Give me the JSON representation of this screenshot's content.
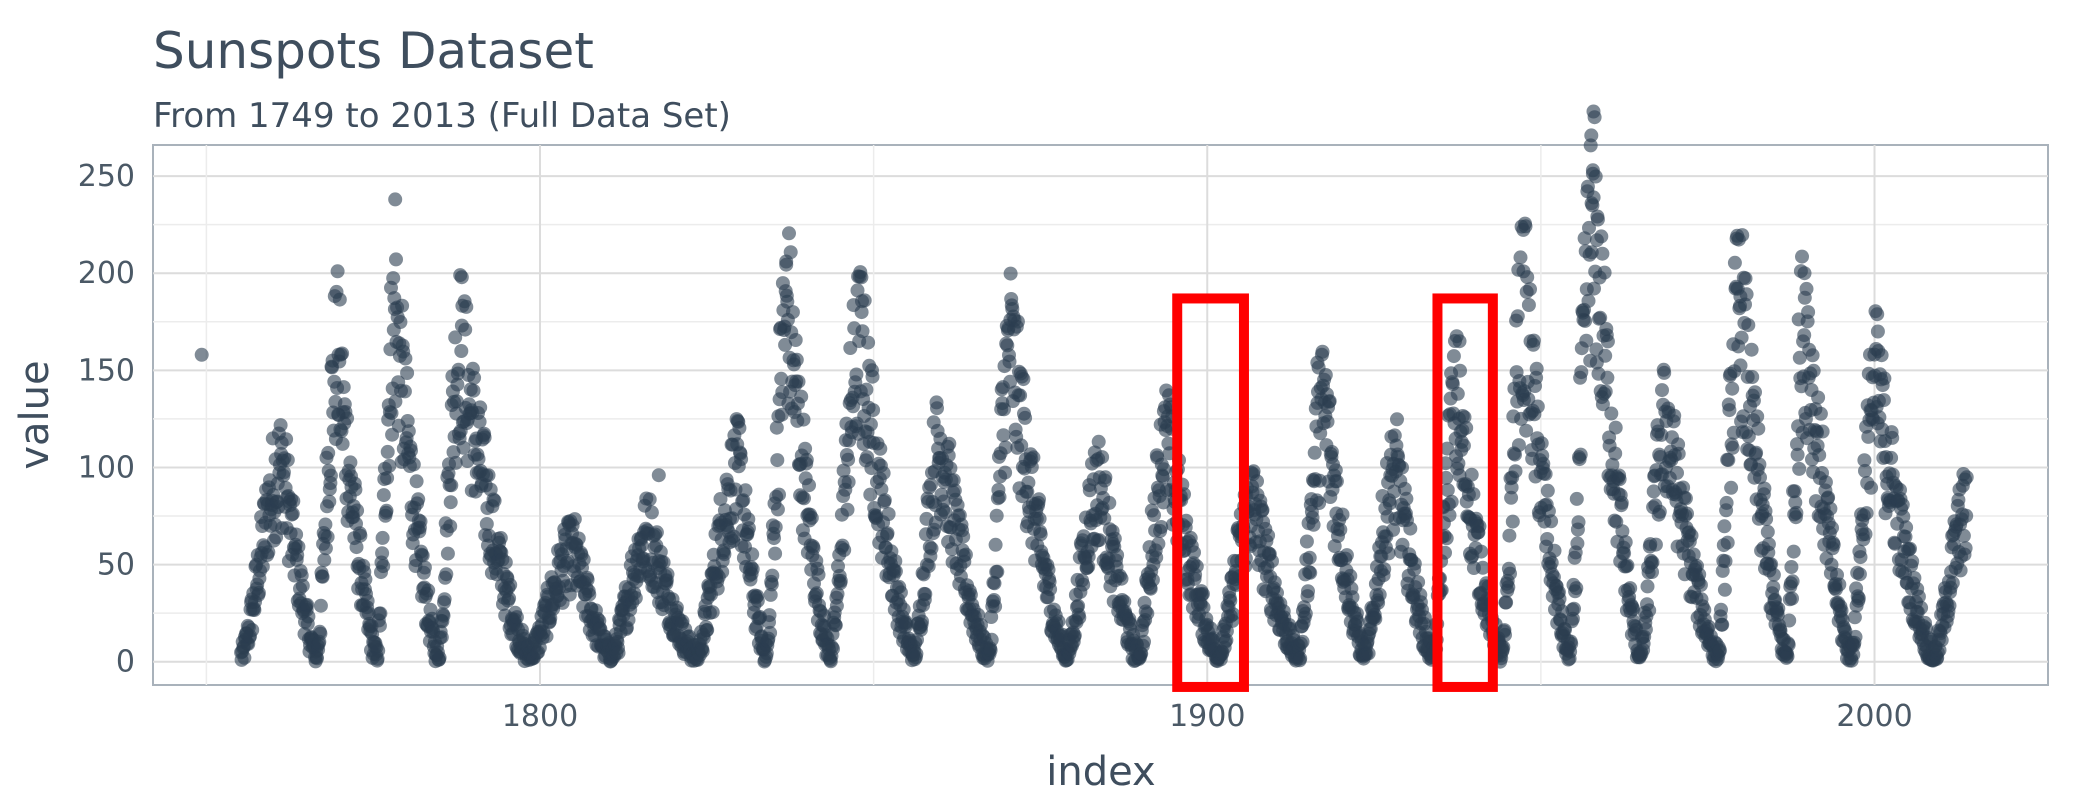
{
  "chart_data": {
    "type": "scatter",
    "title": "Sunspots Dataset",
    "subtitle": "From 1749 to 2013 (Full Data Set)",
    "xlabel": "index",
    "ylabel": "value",
    "xlim": [
      1742,
      2026
    ],
    "ylim": [
      -12,
      266
    ],
    "x_ticks": [
      1800,
      1900,
      2000
    ],
    "y_ticks": [
      0,
      50,
      100,
      150,
      200,
      250
    ],
    "grid": true,
    "legend": "none",
    "point_color": "#2c3e50",
    "point_opacity": 0.6,
    "cycles": [
      {
        "min_year": 1755.2,
        "max_year": 1761.5,
        "peak": 100,
        "end_year": 1766.5
      },
      {
        "min_year": 1766.5,
        "max_year": 1769.7,
        "peak": 155,
        "end_year": 1775.5
      },
      {
        "min_year": 1775.5,
        "max_year": 1778.4,
        "peak": 175,
        "end_year": 1784.7
      },
      {
        "min_year": 1784.7,
        "max_year": 1788.1,
        "peak": 160,
        "end_year": 1798.3
      },
      {
        "min_year": 1798.3,
        "max_year": 1805.2,
        "peak": 55,
        "end_year": 1810.6
      },
      {
        "min_year": 1810.6,
        "max_year": 1816.4,
        "peak": 65,
        "end_year": 1823.3
      },
      {
        "min_year": 1823.3,
        "max_year": 1829.9,
        "peak": 95,
        "end_year": 1833.9
      },
      {
        "min_year": 1833.9,
        "max_year": 1837.2,
        "peak": 180,
        "end_year": 1843.5
      },
      {
        "min_year": 1843.5,
        "max_year": 1848.1,
        "peak": 160,
        "end_year": 1856.0
      },
      {
        "min_year": 1856.0,
        "max_year": 1860.1,
        "peak": 110,
        "end_year": 1867.2
      },
      {
        "min_year": 1867.2,
        "max_year": 1870.6,
        "peak": 160,
        "end_year": 1878.9
      },
      {
        "min_year": 1878.9,
        "max_year": 1883.9,
        "peak": 90,
        "end_year": 1889.6
      },
      {
        "min_year": 1889.6,
        "max_year": 1894.1,
        "peak": 110,
        "end_year": 1901.7
      },
      {
        "min_year": 1901.7,
        "max_year": 1907.0,
        "peak": 80,
        "end_year": 1913.6
      },
      {
        "min_year": 1913.6,
        "max_year": 1917.6,
        "peak": 130,
        "end_year": 1923.6
      },
      {
        "min_year": 1923.6,
        "max_year": 1928.4,
        "peak": 95,
        "end_year": 1933.8
      },
      {
        "min_year": 1933.8,
        "max_year": 1937.4,
        "peak": 130,
        "end_year": 1944.2
      },
      {
        "min_year": 1944.2,
        "max_year": 1947.5,
        "peak": 180,
        "end_year": 1954.3
      },
      {
        "min_year": 1954.3,
        "max_year": 1957.9,
        "peak": 225,
        "end_year": 1964.9
      },
      {
        "min_year": 1964.9,
        "max_year": 1968.9,
        "peak": 120,
        "end_year": 1976.5
      },
      {
        "min_year": 1976.5,
        "max_year": 1979.9,
        "peak": 180,
        "end_year": 1986.8
      },
      {
        "min_year": 1986.8,
        "max_year": 1989.6,
        "peak": 175,
        "end_year": 1996.4
      },
      {
        "min_year": 1996.4,
        "max_year": 2000.3,
        "peak": 140,
        "end_year": 2008.9
      },
      {
        "min_year": 2008.9,
        "max_year": 2013.9,
        "peak": 75,
        "end_year": 2013.9
      }
    ],
    "notable_points": [
      {
        "x": 1749.3,
        "y": 158
      },
      {
        "x": 1778.3,
        "y": 238
      },
      {
        "x": 1836.9,
        "y": 206
      },
      {
        "x": 1947.4,
        "y": 201
      },
      {
        "x": 1957.8,
        "y": 253
      },
      {
        "x": 1957.9,
        "y": 239
      },
      {
        "x": 1957.6,
        "y": 236
      },
      {
        "x": 1958.4,
        "y": 217
      },
      {
        "x": 1979.9,
        "y": 188
      },
      {
        "x": 1989.5,
        "y": 200
      },
      {
        "x": 2000.5,
        "y": 170
      },
      {
        "x": 1916.5,
        "y": 154
      },
      {
        "x": 1937.8,
        "y": 165
      },
      {
        "x": 1817.8,
        "y": 96
      },
      {
        "x": 1893.5,
        "y": 129
      },
      {
        "x": 1788.3,
        "y": 173
      },
      {
        "x": 1769.8,
        "y": 158
      },
      {
        "x": 1848.2,
        "y": 180
      },
      {
        "x": 1870.5,
        "y": 176
      }
    ],
    "highlight_boxes": [
      {
        "x_range": [
          1895.5,
          1905.5
        ],
        "y_range": [
          -13,
          187
        ],
        "color": "#ff0000"
      },
      {
        "x_range": [
          1934.5,
          1942.8
        ],
        "y_range": [
          -13,
          187
        ],
        "color": "#ff0000"
      }
    ]
  }
}
